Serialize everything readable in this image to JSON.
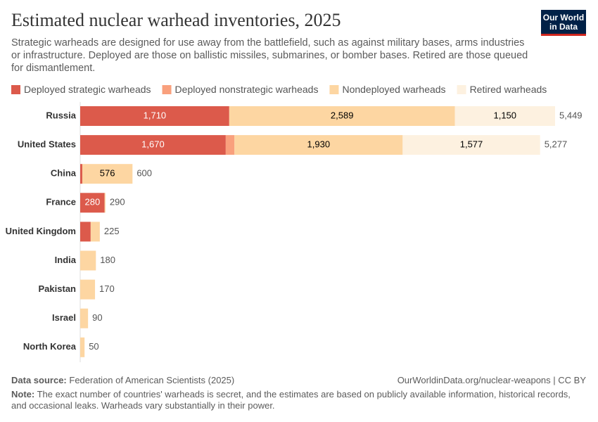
{
  "chart_data": {
    "type": "stacked-bar-horizontal",
    "title": "Estimated nuclear warhead inventories, 2025",
    "subtitle": "Strategic warheads are designed for use away from the battlefield, such as against military bases, arms industries or infrastructure. Deployed are those on ballistic missiles, submarines, or bomber bases. Retired are those queued for dismantlement.",
    "logo": [
      "Our World",
      "in Data"
    ],
    "categories": [
      "Russia",
      "United States",
      "China",
      "France",
      "United Kingdom",
      "India",
      "Pakistan",
      "Israel",
      "North Korea"
    ],
    "series": [
      {
        "name": "Deployed strategic warheads",
        "color": "#dc5a4b",
        "values": [
          1710,
          1670,
          24,
          280,
          120,
          0,
          0,
          0,
          0
        ],
        "value_labels": [
          "1,710",
          "1,670",
          null,
          "280",
          null,
          null,
          null,
          null,
          null
        ]
      },
      {
        "name": "Deployed nonstrategic warheads",
        "color": "#f9a07d",
        "values": [
          0,
          100,
          0,
          0,
          0,
          0,
          0,
          0,
          0
        ],
        "value_labels": [
          null,
          null,
          null,
          null,
          null,
          null,
          null,
          null,
          null
        ]
      },
      {
        "name": "Nondeployed warheads",
        "color": "#fdd6a2",
        "values": [
          2589,
          1930,
          576,
          10,
          105,
          180,
          170,
          90,
          50
        ],
        "value_labels": [
          "2,589",
          "1,930",
          "576",
          null,
          null,
          null,
          null,
          null,
          null
        ]
      },
      {
        "name": "Retired warheads",
        "color": "#fdf1e0",
        "values": [
          1150,
          1577,
          0,
          0,
          0,
          0,
          0,
          0,
          0
        ],
        "value_labels": [
          "1,150",
          "1,577",
          null,
          null,
          null,
          null,
          null,
          null,
          null
        ]
      }
    ],
    "totals": [
      5449,
      5277,
      600,
      290,
      225,
      180,
      170,
      90,
      50
    ],
    "total_labels": [
      "5,449",
      "5,277",
      "600",
      "290",
      "225",
      "180",
      "170",
      "90",
      "50"
    ],
    "source_label": "Data source:",
    "source": "Federation of American Scientists (2025)",
    "url": "OurWorldinData.org/nuclear-weapons | CC BY",
    "note_label": "Note:",
    "note": "The exact number of countries' warheads is secret, and the estimates are based on publicly available information, historical records, and occasional leaks. Warheads vary substantially in their power."
  }
}
